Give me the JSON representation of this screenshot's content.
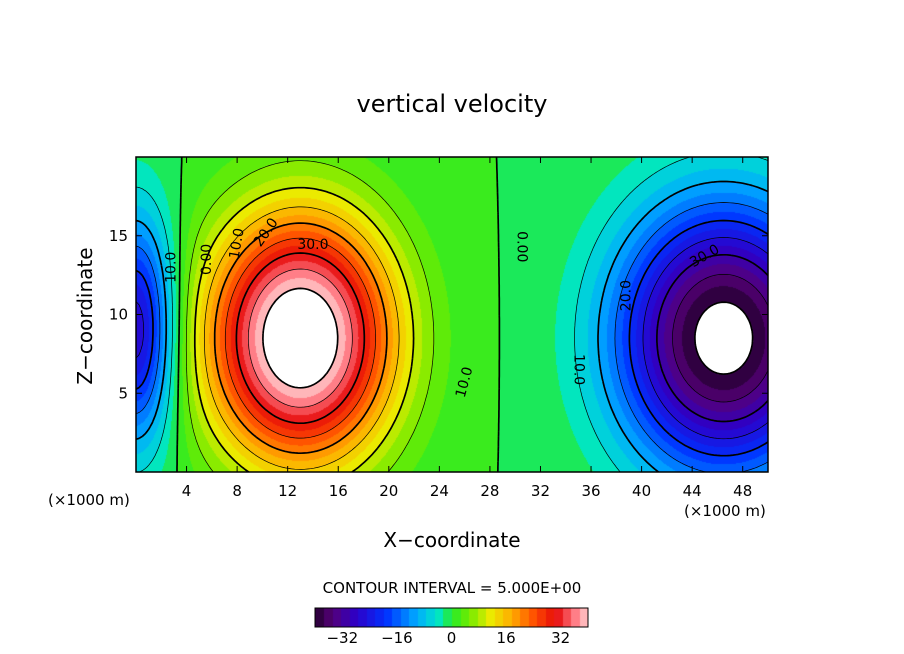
{
  "chart_data": {
    "type": "heatmap",
    "title": "vertical velocity",
    "xlabel": "X−coordinate",
    "ylabel": "Z−coordinate",
    "x_unit_left": "(×1000 m)",
    "x_unit_right": "(×1000 m)",
    "xlim": [
      0,
      50
    ],
    "ylim": [
      0,
      20
    ],
    "x_ticks": [
      4,
      8,
      12,
      16,
      20,
      24,
      28,
      32,
      36,
      40,
      44,
      48
    ],
    "y_ticks": [
      5,
      10,
      15
    ],
    "contour_interval_label": "CONTOUR INTERVAL = 5.000E+00",
    "contour_interval": 5,
    "colorbar": {
      "min": -40,
      "max": 40,
      "ticks": [
        -32,
        -16,
        0,
        16,
        32
      ]
    },
    "field": {
      "positive_cell": {
        "center_x": 13,
        "center_z": 8.5,
        "peak": 45
      },
      "negative_cell": {
        "center_x": 46.5,
        "center_z": 8.5,
        "peak": -42
      },
      "left_edge_cell": {
        "center_x": 0,
        "center_z": 9,
        "peak": -28
      },
      "zero_line_x": 30.5
    },
    "contour_labels": [
      {
        "text": "30.0",
        "x": 14,
        "z": 14.4,
        "rot": 0
      },
      {
        "text": "20.0",
        "x": 10.3,
        "z": 15.2,
        "rot": -55
      },
      {
        "text": "10.0",
        "x": 8,
        "z": 14.5,
        "rot": -80
      },
      {
        "text": "0.00",
        "x": 5.6,
        "z": 13.5,
        "rot": -90
      },
      {
        "text": "10.0",
        "x": 2.8,
        "z": 13,
        "rot": -90,
        "dashed": true
      },
      {
        "text": "10.0",
        "x": 26,
        "z": 5.7,
        "rot": -75
      },
      {
        "text": "0.00",
        "x": 30.5,
        "z": 14.3,
        "rot": 90
      },
      {
        "text": "30.0",
        "x": 45,
        "z": 13.7,
        "rot": -30,
        "dashed": true
      },
      {
        "text": "20.0",
        "x": 38.8,
        "z": 11.2,
        "rot": -90,
        "dashed": true
      },
      {
        "text": "10.0",
        "x": 35,
        "z": 6.5,
        "rot": 90,
        "dashed": true
      }
    ]
  },
  "colors": {
    "undefined_region": "#ffffff",
    "axis": "#000000"
  }
}
